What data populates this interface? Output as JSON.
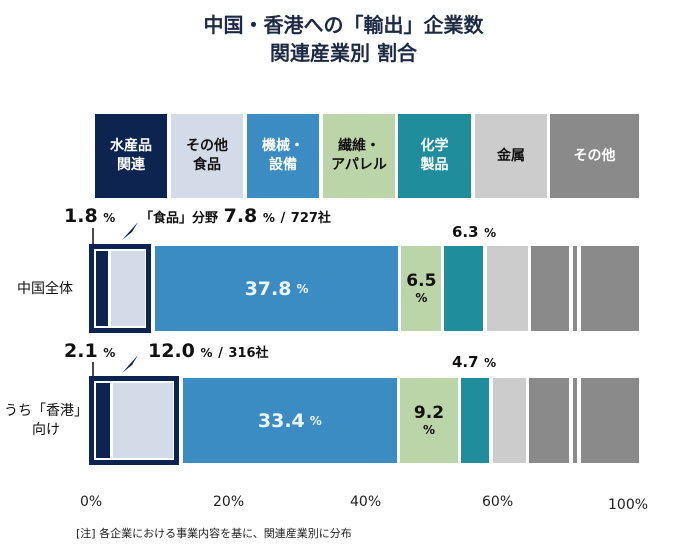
{
  "title_line1": "中国・香港への「輸出」企業数",
  "title_line2": "関連産業別  割合",
  "categories": [
    {
      "label": "水産品\n関連",
      "color": "#0d2350",
      "text_color": "#ffffff"
    },
    {
      "label": "その他\n食品",
      "color": "#d4dbe8",
      "text_color": "#111111"
    },
    {
      "label": "機械・\n設備",
      "color": "#3a8cc2",
      "text_color": "#ffffff"
    },
    {
      "label": "繊維・\nアパレル",
      "color": "#bcd5a8",
      "text_color": "#111111"
    },
    {
      "label": "化学\n製品",
      "color": "#1f8d9c",
      "text_color": "#ffffff"
    },
    {
      "label": "金属",
      "color": "#cccccc",
      "text_color": "#111111"
    },
    {
      "label": "その他",
      "color": "#8a8a8a",
      "text_color": "#ffffff"
    }
  ],
  "chart_data": {
    "type": "bar",
    "orientation": "horizontal-stacked",
    "title": "中国・香港への「輸出」企業数 関連産業別 割合",
    "categories": [
      "水産品関連",
      "その他食品",
      "機械・設備",
      "繊維・アパレル",
      "化学製品",
      "金属",
      "その他"
    ],
    "rows": [
      {
        "name": "中国全体",
        "values": [
          1.8,
          6.0,
          37.8,
          6.5,
          6.3,
          null,
          null
        ],
        "food_total": "7.8",
        "food_count": "727社",
        "labels": {
          "seafood": "1.8",
          "food": "7.8",
          "machinery": "37.8",
          "textile": "6.5",
          "chemical": "6.3"
        }
      },
      {
        "name": "うち「香港」向け",
        "values": [
          2.1,
          9.9,
          33.4,
          9.2,
          4.7,
          null,
          null
        ],
        "food_total": "12.0",
        "food_count": "316社",
        "labels": {
          "seafood": "2.1",
          "food": "12.0",
          "machinery": "33.4",
          "textile": "9.2",
          "chemical": "4.7"
        }
      }
    ],
    "xticks": [
      "0%",
      "20%",
      "40%",
      "60%",
      "100%"
    ],
    "xlim": [
      0,
      100
    ],
    "axis_break": "between 60% and 100%",
    "food_callout_label": "「食品」分野",
    "percent_unit": "%",
    "note": "[注]  各企業における事業内容を基に、関連産業別に分布"
  },
  "row_labels": [
    "中国全体",
    "うち「香港」\n向け"
  ],
  "unit": "%",
  "slash": "/"
}
